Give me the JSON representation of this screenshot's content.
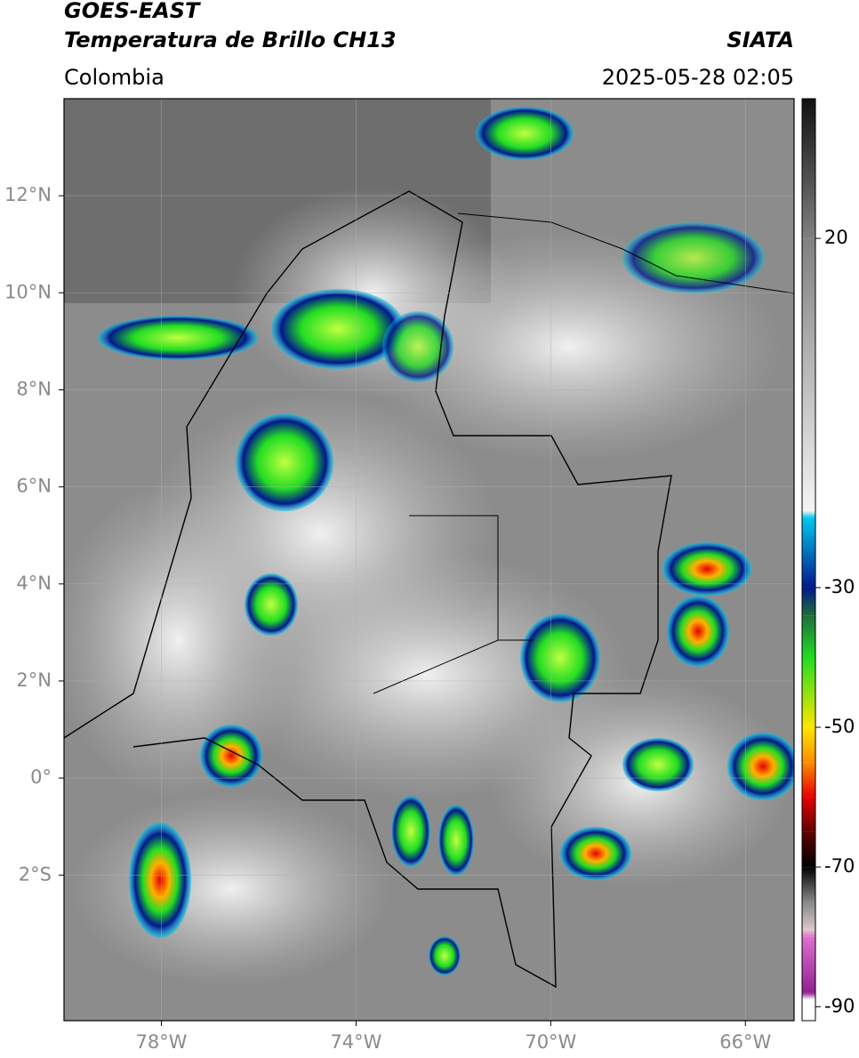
{
  "header": {
    "title": "GOES-EAST",
    "subtitle": "Temperatura de Brillo CH13",
    "source": "SIATA",
    "region": "Colombia",
    "datetime": "2025-05-28 02:05"
  },
  "map": {
    "xlim": [
      -80,
      -65
    ],
    "ylim": [
      -5,
      14
    ],
    "xticks": [
      {
        "value": -78,
        "label": "78°W"
      },
      {
        "value": -74,
        "label": "74°W"
      },
      {
        "value": -70,
        "label": "70°W"
      },
      {
        "value": -66,
        "label": "66°W"
      }
    ],
    "yticks": [
      {
        "value": -2,
        "label": "2°S"
      },
      {
        "value": 0,
        "label": "0°"
      },
      {
        "value": 2,
        "label": "2°N"
      },
      {
        "value": 4,
        "label": "4°N"
      },
      {
        "value": 6,
        "label": "6°N"
      },
      {
        "value": 8,
        "label": "8°N"
      },
      {
        "value": 10,
        "label": "10°N"
      },
      {
        "value": 12,
        "label": "12°N"
      }
    ],
    "grid": true
  },
  "colorbar": {
    "lim": [
      -92,
      40
    ],
    "ticks": [
      -90,
      -70,
      -50,
      -30,
      20
    ],
    "stops": [
      {
        "value": 40,
        "color": "#111111"
      },
      {
        "value": 20,
        "color": "#808080"
      },
      {
        "value": -19,
        "color": "#f4f4f4"
      },
      {
        "value": -20,
        "color": "#00c8f0"
      },
      {
        "value": -30,
        "color": "#00188c"
      },
      {
        "value": -34,
        "color": "#1d6e3a"
      },
      {
        "value": -40,
        "color": "#22dd22"
      },
      {
        "value": -50,
        "color": "#ffe600"
      },
      {
        "value": -55,
        "color": "#ff8c00"
      },
      {
        "value": -60,
        "color": "#e60000"
      },
      {
        "value": -65,
        "color": "#600000"
      },
      {
        "value": -70,
        "color": "#000000"
      },
      {
        "value": -75,
        "color": "#888888"
      },
      {
        "value": -79,
        "color": "#dcc8c8"
      },
      {
        "value": -80,
        "color": "#e070d0"
      },
      {
        "value": -88,
        "color": "#902090"
      },
      {
        "value": -89,
        "color": "#ffffff"
      },
      {
        "value": -92,
        "color": "#ffffff"
      }
    ]
  }
}
